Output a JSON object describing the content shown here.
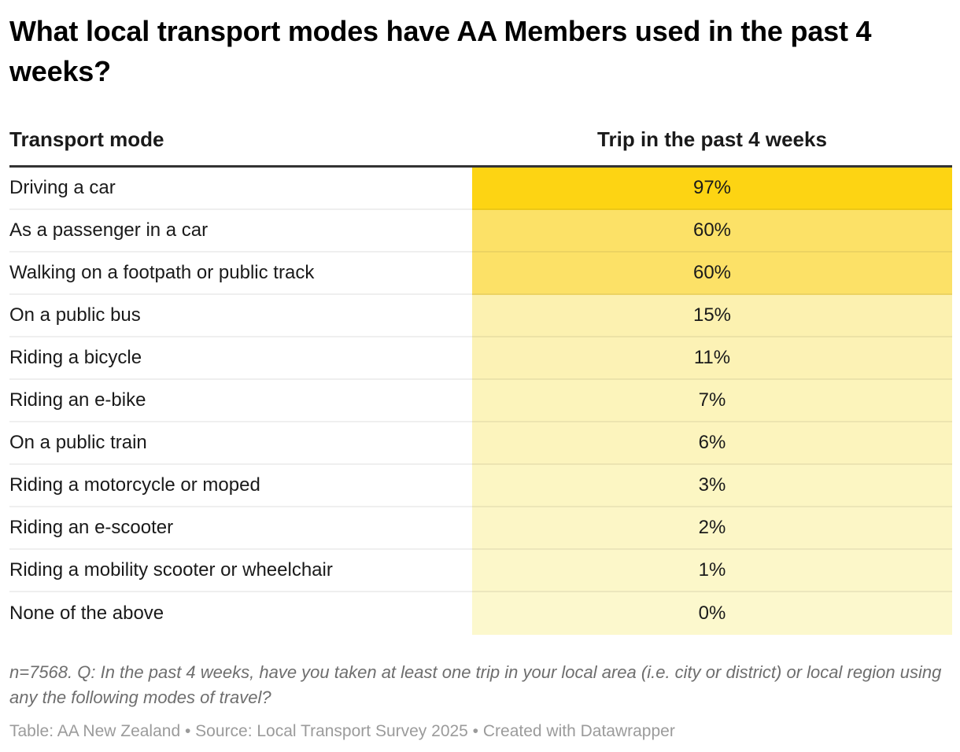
{
  "title": "What local transport modes have AA Members used in the past 4 weeks?",
  "table": {
    "columns": [
      {
        "label": "Transport mode"
      },
      {
        "label": "Trip in the past 4 weeks"
      }
    ],
    "rows": [
      {
        "label": "Driving a car",
        "value": "97%",
        "color": "#FDD413"
      },
      {
        "label": "As a passenger in a car",
        "value": "60%",
        "color": "#FCE167"
      },
      {
        "label": "Walking on a footpath or public track",
        "value": "60%",
        "color": "#FCE167"
      },
      {
        "label": "On a public bus",
        "value": "15%",
        "color": "#FCF1B0"
      },
      {
        "label": "Riding a bicycle",
        "value": "11%",
        "color": "#FCF2B5"
      },
      {
        "label": "Riding an e-bike",
        "value": "7%",
        "color": "#FCF4BB"
      },
      {
        "label": "On a public train",
        "value": "6%",
        "color": "#FCF4BD"
      },
      {
        "label": "Riding a motorcycle or moped",
        "value": "3%",
        "color": "#FCF6C3"
      },
      {
        "label": "Riding an e-scooter",
        "value": "2%",
        "color": "#FCF6C6"
      },
      {
        "label": "Riding a mobility scooter or wheelchair",
        "value": "1%",
        "color": "#FCF7C9"
      },
      {
        "label": "None of the above",
        "value": "0%",
        "color": "#FCF8CD"
      }
    ]
  },
  "notes": {
    "question": "n=7568. Q: In the past 4 weeks, have you taken at least one trip in your local area (i.e. city or district) or local region using any the following modes of travel?",
    "byline": "Table: AA New Zealand • Source: Local Transport Survey 2025 • Created with Datawrapper"
  },
  "colors": {
    "header_rule": "#333333",
    "row_separator": "rgba(51,51,51,0.08)",
    "max_value_fill": "#FDD413",
    "min_value_fill": "#FCF8CD",
    "text": "#1a1a1a",
    "note_text": "#6e6e6e",
    "byline_text": "#9b9b9b"
  },
  "chart_data": {
    "type": "table",
    "title": "What local transport modes have AA Members used in the past 4 weeks?",
    "columns": [
      "Transport mode",
      "Trip in the past 4 weeks"
    ],
    "categories": [
      "Driving a car",
      "As a passenger in a car",
      "Walking on a footpath or public track",
      "On a public bus",
      "Riding a bicycle",
      "Riding an e-bike",
      "On a public train",
      "Riding a motorcycle or moped",
      "Riding an e-scooter",
      "Riding a mobility scooter or wheelchair",
      "None of the above"
    ],
    "values": [
      97,
      60,
      60,
      15,
      11,
      7,
      6,
      3,
      2,
      1,
      0
    ],
    "unit": "%",
    "value_range": [
      0,
      100
    ],
    "heatmap_column": "Trip in the past 4 weeks",
    "heatmap_palette": [
      "#FCF8CD",
      "#FDD413"
    ],
    "note": "n=7568. Q: In the past 4 weeks, have you taken at least one trip in your local area (i.e. city or district) or local region using any the following modes of travel?",
    "source": "Table: AA New Zealand • Source: Local Transport Survey 2025 • Created with Datawrapper"
  }
}
